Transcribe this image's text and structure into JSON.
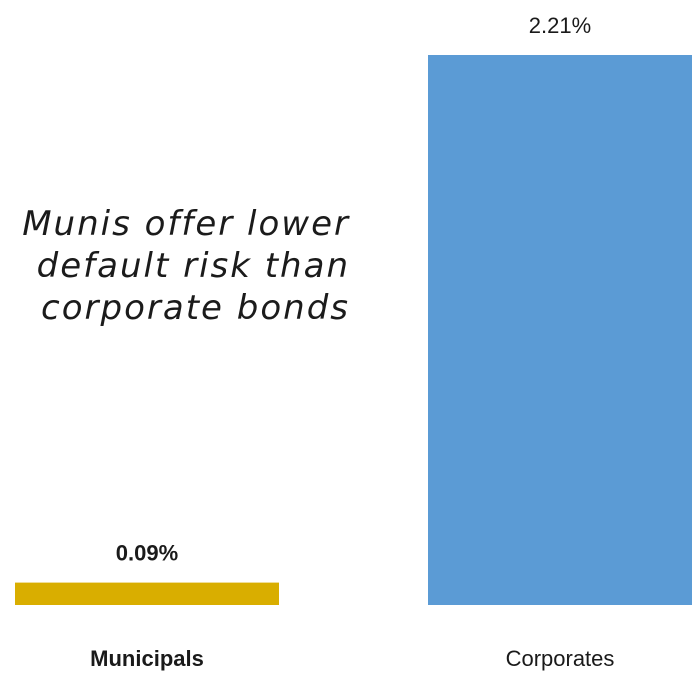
{
  "chart_data": {
    "type": "bar",
    "categories": [
      "Municipals",
      "Corporates"
    ],
    "values": [
      0.09,
      2.21
    ],
    "value_labels": [
      "0.09%",
      "2.21%"
    ],
    "colors": [
      "#D9AE00",
      "#5B9BD5"
    ],
    "category_bold": [
      true,
      false
    ],
    "value_label_bold": [
      true,
      false
    ],
    "ylim": [
      0,
      2.21
    ],
    "grid": false,
    "legend": "none",
    "annotation": "Munis offer lower\ndefault risk than\ncorporate bonds"
  }
}
